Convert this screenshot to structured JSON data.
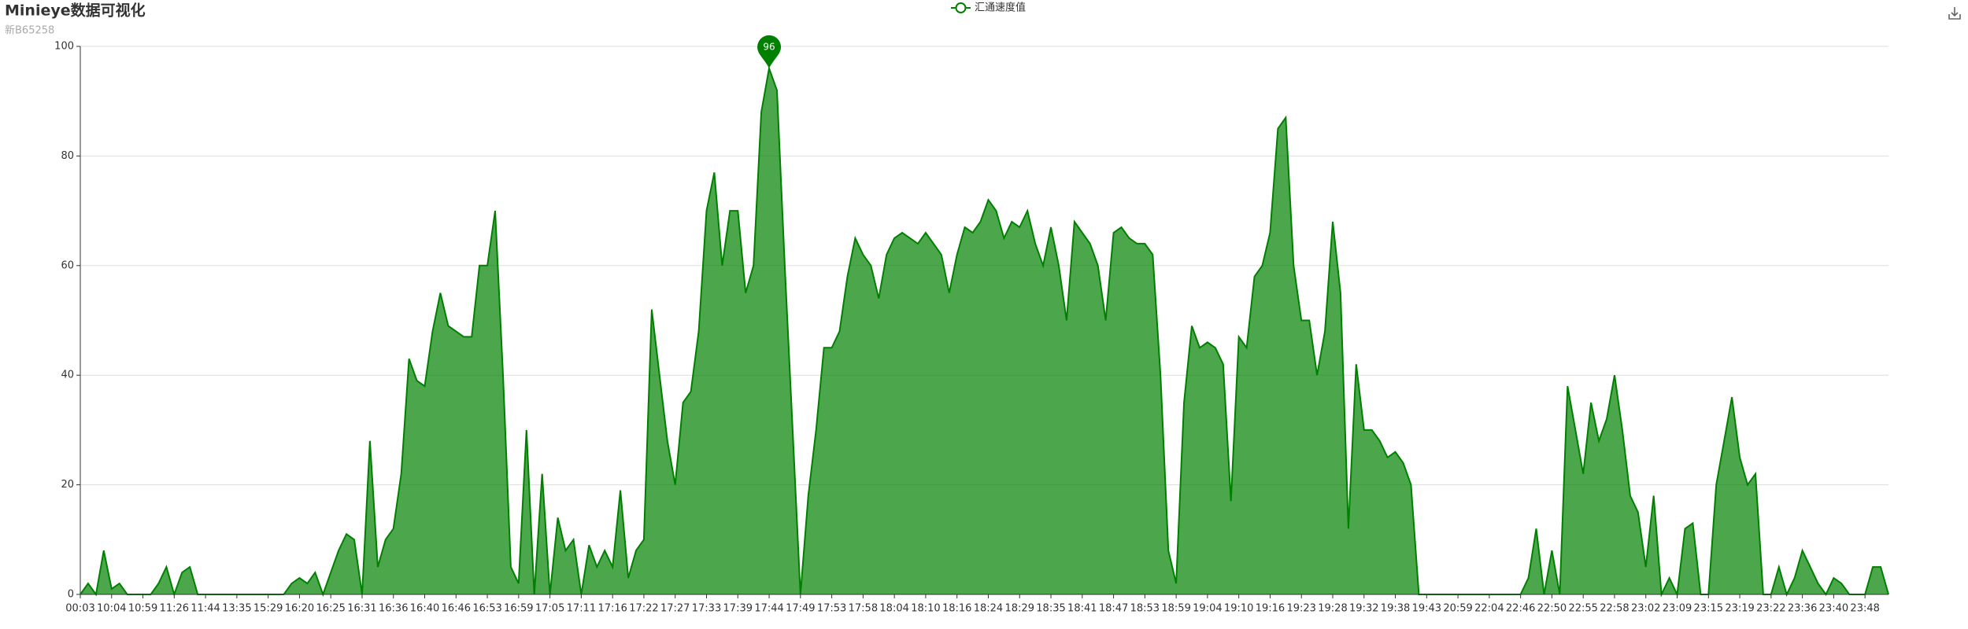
{
  "chart_data": {
    "type": "area",
    "title": "Minieye数据可视化",
    "subtitle": "新B65258",
    "series": [
      {
        "name": "汇通速度值",
        "color": "#008000",
        "values": [
          0,
          2,
          0,
          8,
          1,
          2,
          0,
          0,
          0,
          0,
          2,
          5,
          0,
          4,
          5,
          0,
          0,
          0,
          0,
          0,
          0,
          0,
          0,
          0,
          0,
          0,
          0,
          2,
          3,
          2,
          4,
          0,
          4,
          8,
          11,
          10,
          0,
          28,
          5,
          10,
          12,
          22,
          43,
          39,
          38,
          48,
          55,
          49,
          48,
          47,
          47,
          60,
          60,
          70,
          40,
          5,
          2,
          30,
          0,
          22,
          0,
          14,
          8,
          10,
          0,
          9,
          5,
          8,
          5,
          19,
          3,
          8,
          10,
          52,
          40,
          28,
          20,
          35,
          37,
          48,
          70,
          77,
          60,
          70,
          70,
          55,
          60,
          88,
          96,
          92,
          60,
          30,
          0,
          18,
          30,
          45,
          45,
          48,
          58,
          65,
          62,
          60,
          54,
          62,
          65,
          66,
          65,
          64,
          66,
          64,
          62,
          55,
          62,
          67,
          66,
          68,
          72,
          70,
          65,
          68,
          67,
          70,
          64,
          60,
          67,
          60,
          50,
          68,
          66,
          64,
          60,
          50,
          66,
          67,
          65,
          64,
          64,
          62,
          40,
          8,
          2,
          35,
          49,
          45,
          46,
          45,
          42,
          17,
          47,
          45,
          58,
          60,
          66,
          85,
          87,
          60,
          50,
          50,
          40,
          48,
          68,
          55,
          12,
          42,
          30,
          30,
          28,
          25,
          26,
          24,
          20,
          0,
          0,
          0,
          0,
          0,
          0,
          0,
          0,
          0,
          0,
          0,
          0,
          0,
          0,
          3,
          12,
          0,
          8,
          0,
          38,
          30,
          22,
          35,
          28,
          32,
          40,
          30,
          18,
          15,
          5,
          18,
          0,
          3,
          0,
          12,
          13,
          0,
          0,
          20,
          28,
          36,
          25,
          20,
          22,
          0,
          0,
          5,
          0,
          3,
          8,
          5,
          2,
          0,
          3,
          2,
          0,
          0,
          0,
          5,
          5,
          0
        ]
      }
    ],
    "categories": [
      "00:03",
      null,
      null,
      null,
      "10:04",
      null,
      null,
      null,
      "10:59",
      null,
      null,
      null,
      "11:26",
      null,
      null,
      null,
      "11:44",
      null,
      null,
      null,
      "13:35",
      null,
      null,
      null,
      "15:29",
      null,
      null,
      null,
      "16:20",
      null,
      null,
      null,
      "16:25",
      null,
      null,
      null,
      "16:31",
      null,
      null,
      null,
      "16:36",
      null,
      null,
      null,
      "16:40",
      null,
      null,
      null,
      "16:46",
      null,
      null,
      null,
      "16:53",
      null,
      null,
      null,
      "16:59",
      null,
      null,
      null,
      "17:05",
      null,
      null,
      null,
      "17:11",
      null,
      null,
      null,
      "17:16",
      null,
      null,
      null,
      "17:22",
      null,
      null,
      null,
      "17:27",
      null,
      null,
      null,
      "17:33",
      null,
      null,
      null,
      "17:39",
      null,
      null,
      null,
      "17:44",
      null,
      null,
      null,
      "17:49",
      null,
      null,
      null,
      "17:53",
      null,
      null,
      null,
      "17:58",
      null,
      null,
      null,
      "18:04",
      null,
      null,
      null,
      "18:10",
      null,
      null,
      null,
      "18:16",
      null,
      null,
      null,
      "18:24",
      null,
      null,
      null,
      "18:29",
      null,
      null,
      null,
      "18:35",
      null,
      null,
      null,
      "18:41",
      null,
      null,
      null,
      "18:47",
      null,
      null,
      null,
      "18:53",
      null,
      null,
      null,
      "18:59",
      null,
      null,
      null,
      "19:04",
      null,
      null,
      null,
      "19:10",
      null,
      null,
      null,
      "19:16",
      null,
      null,
      null,
      "19:23",
      null,
      null,
      null,
      "19:28",
      null,
      null,
      null,
      "19:32",
      null,
      null,
      null,
      "19:38",
      null,
      null,
      null,
      "19:43",
      null,
      null,
      null,
      "20:59",
      null,
      null,
      null,
      "22:04",
      null,
      null,
      null,
      "22:46",
      null,
      null,
      null,
      "22:50",
      null,
      null,
      null,
      "22:55",
      null,
      null,
      null,
      "22:58",
      null,
      null,
      null,
      "23:02",
      null,
      null,
      null,
      "23:09",
      null,
      null,
      null,
      "23:15",
      null,
      null,
      null,
      "23:19",
      null,
      null,
      null,
      "23:22",
      null,
      null,
      null,
      "23:36",
      null,
      null,
      null,
      "23:40",
      null,
      null,
      null,
      "23:48",
      null,
      null,
      null
    ],
    "ylim": [
      0,
      100
    ],
    "yticks": [
      0,
      20,
      40,
      60,
      80,
      100
    ],
    "grid": true,
    "mark_point": "max",
    "legend": "top"
  }
}
